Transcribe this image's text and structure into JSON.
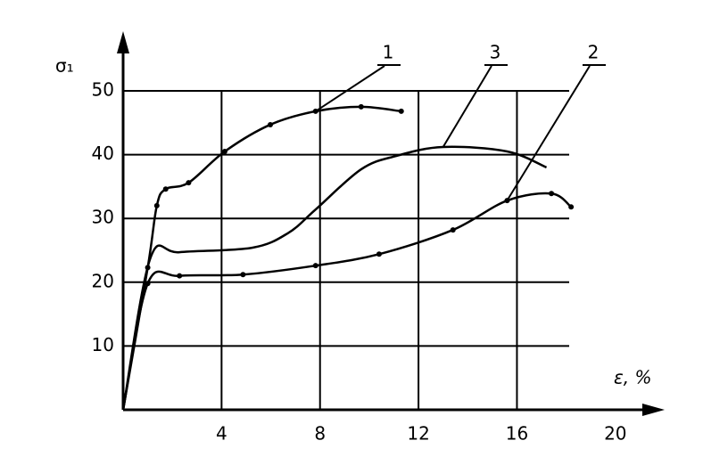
{
  "chart_data": {
    "type": "line",
    "ylabel": "σ₁",
    "xlabel": "ε, %",
    "xlim": [
      0,
      22
    ],
    "ylim": [
      0,
      50
    ],
    "xticks": [
      4,
      8,
      12,
      16,
      20
    ],
    "yticks": [
      10,
      20,
      30,
      40,
      50
    ],
    "grid": true,
    "series": [
      {
        "name": "1",
        "color": "#000000",
        "marker": true,
        "x": [
          0,
          1.0,
          1.37,
          1.73,
          2.66,
          4.13,
          5.98,
          7.82,
          9.67,
          11.3
        ],
        "values": [
          0,
          22.3,
          32,
          34.6,
          35.6,
          40.5,
          44.7,
          46.8,
          47.5,
          46.8
        ]
      },
      {
        "name": "2",
        "color": "#000000",
        "marker": true,
        "x": [
          0,
          1.0,
          2.29,
          4.87,
          7.82,
          10.4,
          13.4,
          15.6,
          17.4,
          18.2
        ],
        "values": [
          0,
          19.8,
          21,
          21.2,
          22.6,
          24.4,
          28.2,
          32.8,
          33.9,
          31.8
        ]
      },
      {
        "name": "3",
        "color": "#000000",
        "marker": false,
        "x": [
          0,
          1.1,
          2.29,
          5.24,
          6.7,
          7.82,
          9.67,
          11.1,
          13,
          15.6,
          17.2
        ],
        "values": [
          0,
          23.7,
          24.7,
          25.4,
          27.7,
          31.4,
          37.7,
          39.8,
          41.2,
          40.5,
          38
        ]
      }
    ]
  }
}
